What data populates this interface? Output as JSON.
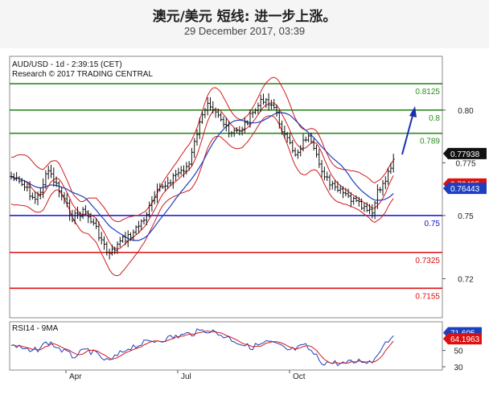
{
  "header": {
    "title": "澳元/美元 短线: 进一步上涨。",
    "subtitle": "29 December 2017, 03:39"
  },
  "chart_data": [
    {
      "type": "line",
      "title": "AUD/USD - 1d - 2:39:15 (CET)",
      "subtitle": "Research © 2017 TRADING CENTRAL",
      "x_ticks": [
        "Apr",
        "Jul",
        "Oct"
      ],
      "y_ticks": [
        0.8,
        0.775,
        0.75,
        0.72
      ],
      "y_tick_labels": [
        "0.80",
        "0.775",
        "0.75",
        "0.72"
      ],
      "ylim": [
        0.7015,
        0.8255
      ],
      "levels": [
        {
          "value": 0.8125,
          "label": "0.8125",
          "color": "#2e8b22"
        },
        {
          "value": 0.8,
          "label": "0.8",
          "color": "#2e8b22"
        },
        {
          "value": 0.789,
          "label": "0.789",
          "color": "#2e8b22"
        },
        {
          "value": 0.75,
          "label": "0.75",
          "color": "#1111cc"
        },
        {
          "value": 0.7325,
          "label": "0.7325",
          "color": "#dd1111"
        },
        {
          "value": 0.7155,
          "label": "0.7155",
          "color": "#dd1111"
        }
      ],
      "price_tags": [
        {
          "value": 0.77938,
          "label": "0.77938",
          "color": "#111111"
        },
        {
          "value": 0.76495,
          "label": "0.76495",
          "color": "#dd1111"
        },
        {
          "value": 0.76443,
          "label": "0.76443",
          "color": "#1d3fbf"
        }
      ],
      "grid": false
    },
    {
      "type": "line",
      "title": "RSI14 - 9MA",
      "y_ticks": [
        50,
        30
      ],
      "ylim": [
        26,
        85
      ],
      "price_tags": [
        {
          "value": 71.605,
          "label": "71.605",
          "color": "#1d3fbf"
        },
        {
          "value": 64.1963,
          "label": "64.1963",
          "color": "#dd1111"
        }
      ],
      "grid": false
    }
  ]
}
